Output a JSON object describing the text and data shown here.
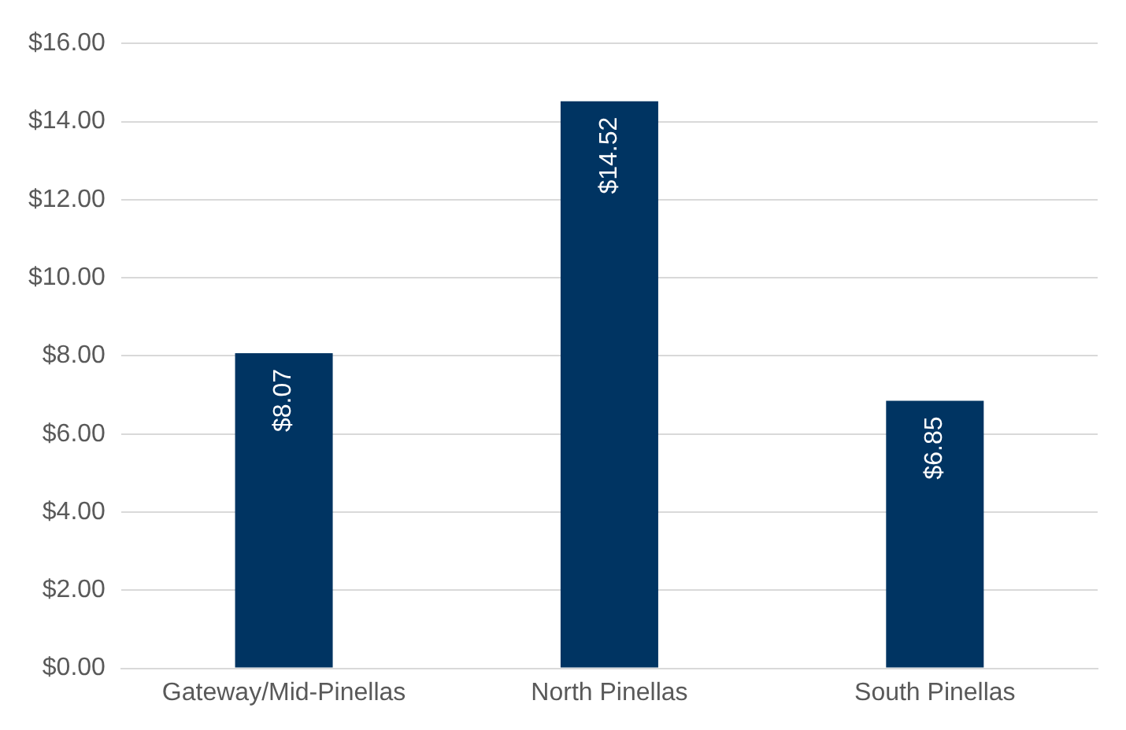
{
  "chart_data": {
    "type": "bar",
    "categories": [
      "Gateway/Mid-Pinellas",
      "North Pinellas",
      "South Pinellas"
    ],
    "values": [
      8.07,
      14.52,
      6.85
    ],
    "value_labels": [
      "$8.07",
      "$14.52",
      "$6.85"
    ],
    "color": "#003462",
    "ylim": [
      0,
      16
    ],
    "yticks": [
      {
        "value": 0,
        "label": "$0.00"
      },
      {
        "value": 2,
        "label": "$2.00"
      },
      {
        "value": 4,
        "label": "$4.00"
      },
      {
        "value": 6,
        "label": "$6.00"
      },
      {
        "value": 8,
        "label": "$8.00"
      },
      {
        "value": 10,
        "label": "$10.00"
      },
      {
        "value": 12,
        "label": "$12.00"
      },
      {
        "value": 14,
        "label": "$14.00"
      },
      {
        "value": 16,
        "label": "$16.00"
      }
    ],
    "grid": "y",
    "legend": false
  }
}
